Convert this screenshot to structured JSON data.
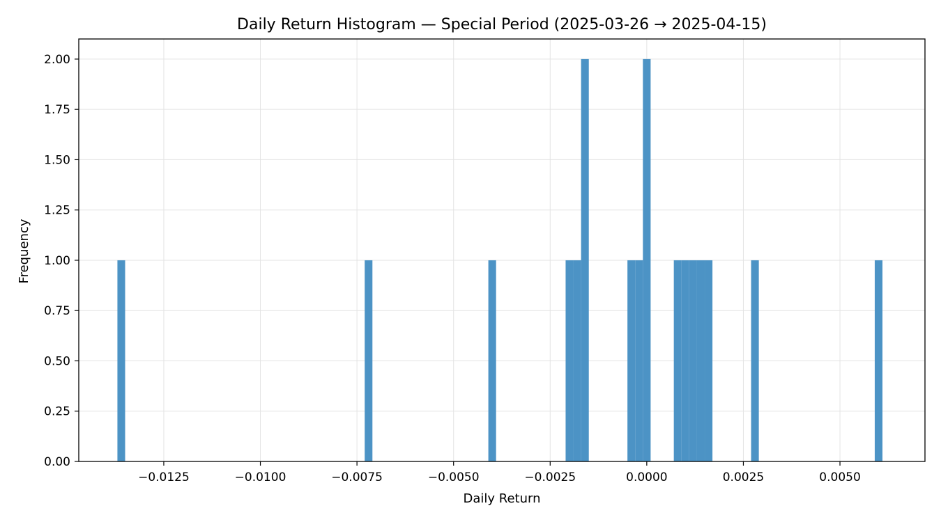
{
  "chart_data": {
    "type": "bar",
    "subtype": "histogram",
    "title": "Daily Return Histogram — Special Period (2025-03-26 → 2025-04-15)",
    "xlabel": "Daily Return",
    "ylabel": "Frequency",
    "xlim": [
      -0.0147,
      0.0072
    ],
    "ylim": [
      0,
      2.1
    ],
    "bin_width": 0.0002,
    "grid": true,
    "legend": "none",
    "colors": {
      "bar": "#4c93c5",
      "grid": "#e3e3e3",
      "axis": "#000000"
    },
    "x_ticks": [
      {
        "value": -0.0125,
        "label": "−0.0125"
      },
      {
        "value": -0.01,
        "label": "−0.0100"
      },
      {
        "value": -0.0075,
        "label": "−0.0075"
      },
      {
        "value": -0.005,
        "label": "−0.0050"
      },
      {
        "value": -0.0025,
        "label": "−0.0025"
      },
      {
        "value": 0.0,
        "label": "0.0000"
      },
      {
        "value": 0.0025,
        "label": "0.0025"
      },
      {
        "value": 0.005,
        "label": "0.0050"
      }
    ],
    "y_ticks": [
      {
        "value": 0.0,
        "label": "0.00"
      },
      {
        "value": 0.25,
        "label": "0.25"
      },
      {
        "value": 0.5,
        "label": "0.50"
      },
      {
        "value": 0.75,
        "label": "0.75"
      },
      {
        "value": 1.0,
        "label": "1.00"
      },
      {
        "value": 1.25,
        "label": "1.25"
      },
      {
        "value": 1.5,
        "label": "1.50"
      },
      {
        "value": 1.75,
        "label": "1.75"
      },
      {
        "value": 2.0,
        "label": "2.00"
      }
    ],
    "bins": [
      {
        "x0": -0.0137,
        "x1": -0.0135,
        "count": 1
      },
      {
        "x0": -0.0073,
        "x1": -0.0071,
        "count": 1
      },
      {
        "x0": -0.0041,
        "x1": -0.0039,
        "count": 1
      },
      {
        "x0": -0.0021,
        "x1": -0.0019,
        "count": 1
      },
      {
        "x0": -0.0019,
        "x1": -0.0017,
        "count": 1
      },
      {
        "x0": -0.0017,
        "x1": -0.0015,
        "count": 2
      },
      {
        "x0": -0.0005,
        "x1": -0.0003,
        "count": 1
      },
      {
        "x0": -0.0003,
        "x1": -0.0001,
        "count": 1
      },
      {
        "x0": -0.0001,
        "x1": 0.0001,
        "count": 2
      },
      {
        "x0": 0.0007,
        "x1": 0.0009,
        "count": 1
      },
      {
        "x0": 0.0009,
        "x1": 0.0011,
        "count": 1
      },
      {
        "x0": 0.0011,
        "x1": 0.0013,
        "count": 1
      },
      {
        "x0": 0.0013,
        "x1": 0.0015,
        "count": 1
      },
      {
        "x0": 0.0015,
        "x1": 0.0017,
        "count": 1
      },
      {
        "x0": 0.0027,
        "x1": 0.0029,
        "count": 1
      },
      {
        "x0": 0.0059,
        "x1": 0.0061,
        "count": 1
      }
    ]
  }
}
